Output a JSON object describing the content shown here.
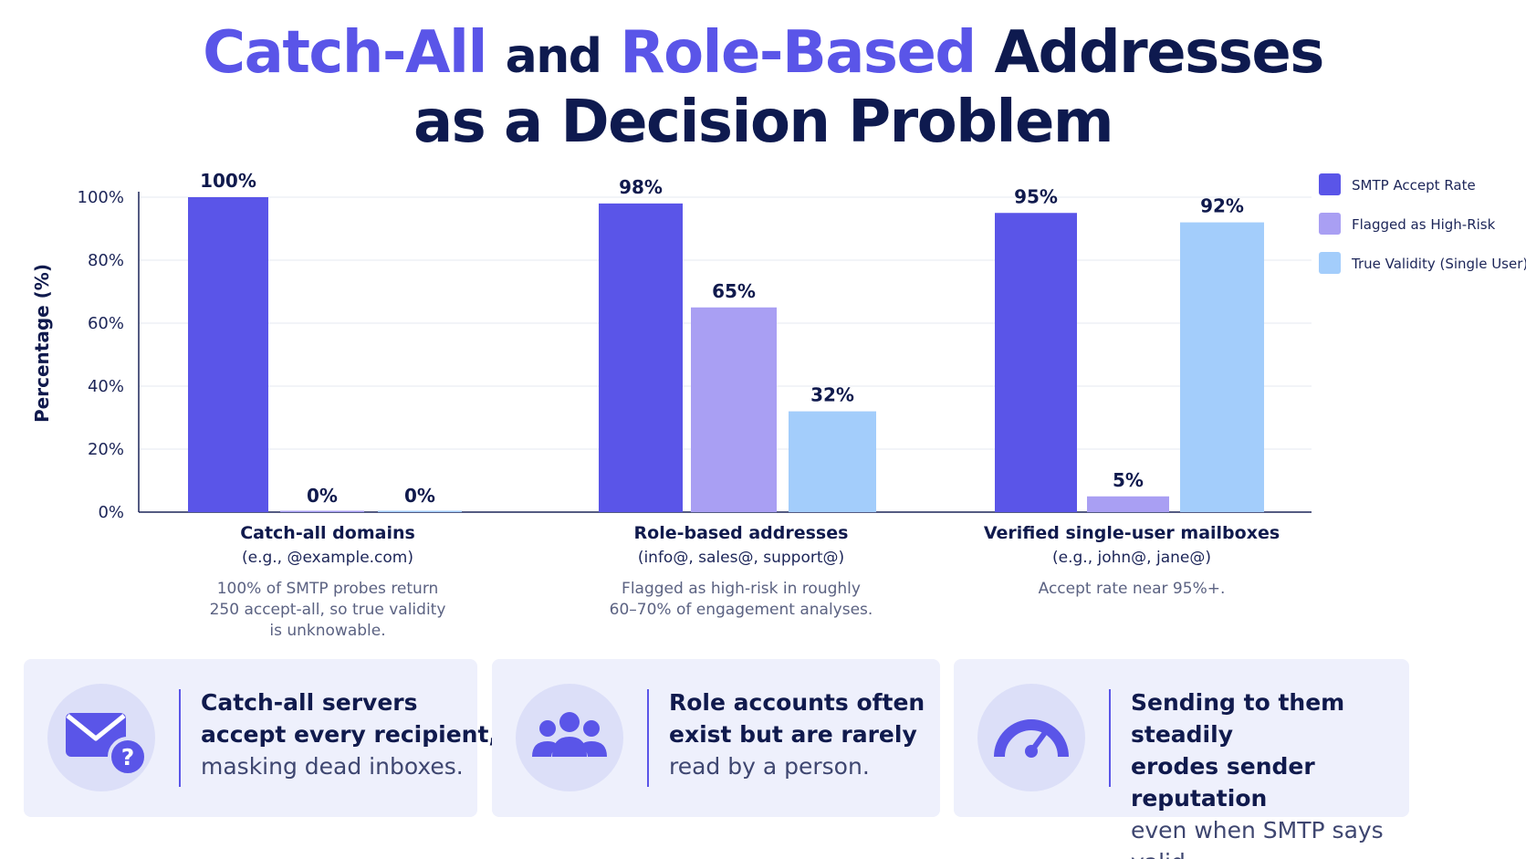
{
  "title": {
    "part1": "Catch-All",
    "part2": "and",
    "part3": "Role-Based",
    "part4": "Addresses",
    "line2": "as a Decision Problem"
  },
  "chart_data": {
    "type": "bar",
    "ylabel": "Percentage (%)",
    "xlabel": "",
    "ylim": [
      0,
      100
    ],
    "yticks": [
      "0%",
      "20%",
      "40%",
      "60%",
      "80%",
      "100%"
    ],
    "grid": true,
    "legend_position": "right",
    "categories": [
      "Catch-all domains",
      "Role-based addresses",
      "Verified single-user mailboxes"
    ],
    "category_subtitles": [
      "(e.g., @example.com)",
      "(info@, sales@, support@)",
      "(e.g., john@, jane@)"
    ],
    "category_notes": [
      [
        "100% of SMTP probes return",
        "250 accept-all, so true validity",
        "is unknowable."
      ],
      [
        "Flagged as high-risk in roughly",
        "60–70% of engagement analyses."
      ],
      [
        "Accept rate near 95%+."
      ]
    ],
    "series": [
      {
        "name": "SMTP Accept Rate",
        "values": [
          100,
          98,
          95
        ],
        "labels": [
          "100%",
          "98%",
          "95%"
        ],
        "color": "#5a55e8"
      },
      {
        "name": "Flagged as High-Risk",
        "values": [
          0,
          65,
          5
        ],
        "labels": [
          "0%",
          "65%",
          "5%"
        ],
        "color": "#a99ff3"
      },
      {
        "name": "True Validity (Single User)",
        "values": [
          0,
          32,
          92
        ],
        "labels": [
          "0%",
          "32%",
          "92%"
        ],
        "color": "#a3cdfb"
      }
    ]
  },
  "cards": [
    {
      "icon": "envelope-question-icon",
      "strong": [
        "Catch-all servers",
        "accept every recipient,"
      ],
      "light": "masking dead inboxes."
    },
    {
      "icon": "group-icon",
      "strong": [
        "Role accounts often",
        "exist but are rarely"
      ],
      "light": "read by a person."
    },
    {
      "icon": "gauge-icon",
      "strong": [
        "Sending to them steadily",
        "erodes sender reputation"
      ],
      "light": "even when SMTP says valid."
    }
  ],
  "colors": {
    "accent": "#5a55e8",
    "navy": "#0e1a4f",
    "card_bg": "#eef0fc"
  }
}
